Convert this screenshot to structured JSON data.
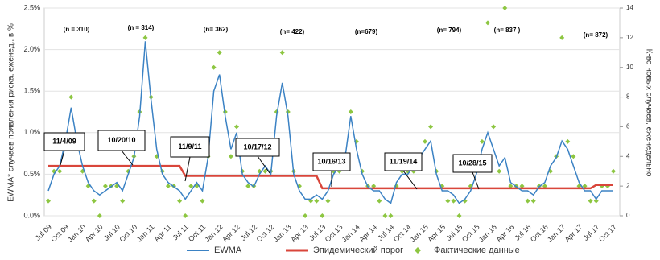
{
  "chart_data": {
    "type": "line",
    "y_label": "EWMA* случаев появления риска, еженед., в %",
    "y2_label": "К-во новых случаев, еженедельно",
    "categories": [
      "Jul 09",
      null,
      null,
      "Oct 09",
      null,
      null,
      "Jan 10",
      null,
      null,
      "Apr 10",
      null,
      null,
      "Jul 10",
      null,
      null,
      "Oct 10",
      null,
      null,
      "Jan 11",
      null,
      null,
      "Apr 11",
      null,
      null,
      "Jul 11",
      null,
      null,
      "Oct 11",
      null,
      null,
      "Jan 12",
      null,
      null,
      "Apr 12",
      null,
      null,
      "Jul 12",
      null,
      null,
      "Oct 12",
      null,
      null,
      "Jan 13",
      null,
      null,
      "Apr 13",
      null,
      null,
      "Jul 13",
      null,
      null,
      "Oct 13",
      null,
      null,
      "Jan 14",
      null,
      null,
      "Apr 14",
      null,
      null,
      "Jul 14",
      null,
      null,
      "Oct 14",
      null,
      null,
      "Jan 15",
      null,
      null,
      "Apr 15",
      null,
      null,
      "Jul 15",
      null,
      null,
      "Oct 15",
      null,
      null,
      "Jan 16",
      null,
      null,
      "Apr 16",
      null,
      null,
      "Jul 16",
      null,
      null,
      "Oct 16",
      null,
      null,
      "Jan 17",
      null,
      null,
      "Apr 17",
      null,
      null,
      "Jul 17",
      null,
      null,
      "Oct 17"
    ],
    "series": [
      {
        "name": "EWMA",
        "type": "line",
        "color": "#3b82c4",
        "values": [
          0.3,
          0.5,
          0.6,
          0.9,
          1.3,
          0.9,
          0.6,
          0.4,
          0.3,
          0.25,
          0.3,
          0.35,
          0.4,
          0.3,
          0.5,
          0.7,
          1.2,
          2.1,
          1.4,
          0.8,
          0.5,
          0.4,
          0.35,
          0.3,
          0.2,
          0.3,
          0.4,
          0.3,
          0.7,
          1.5,
          1.7,
          1.2,
          0.8,
          1.0,
          0.5,
          0.4,
          0.35,
          0.5,
          0.6,
          0.5,
          1.2,
          1.6,
          1.2,
          0.5,
          0.3,
          0.2,
          0.2,
          0.25,
          0.2,
          0.3,
          0.5,
          0.6,
          0.7,
          1.2,
          0.8,
          0.5,
          0.35,
          0.3,
          0.3,
          0.2,
          0.15,
          0.4,
          0.5,
          0.5,
          0.6,
          0.7,
          0.8,
          0.9,
          0.5,
          0.3,
          0.3,
          0.25,
          0.15,
          0.2,
          0.3,
          0.5,
          0.8,
          1.0,
          0.8,
          0.6,
          0.7,
          0.4,
          0.35,
          0.3,
          0.3,
          0.25,
          0.35,
          0.4,
          0.6,
          0.7,
          0.9,
          0.8,
          0.6,
          0.4,
          0.3,
          0.3,
          0.2,
          0.3,
          0.3,
          0.3
        ]
      },
      {
        "name": "Эпидемический порог",
        "type": "line",
        "color": "#d9463b",
        "values": [
          0.6,
          0.6,
          0.6,
          0.6,
          0.6,
          0.6,
          0.6,
          0.6,
          0.6,
          0.6,
          0.6,
          0.6,
          0.6,
          0.6,
          0.6,
          0.6,
          0.6,
          0.6,
          0.6,
          0.6,
          0.6,
          0.6,
          0.6,
          0.6,
          0.48,
          0.48,
          0.48,
          0.48,
          0.48,
          0.48,
          0.48,
          0.48,
          0.48,
          0.48,
          0.48,
          0.48,
          0.48,
          0.48,
          0.48,
          0.48,
          0.48,
          0.48,
          0.48,
          0.48,
          0.48,
          0.48,
          0.48,
          0.48,
          0.33,
          0.33,
          0.33,
          0.33,
          0.33,
          0.33,
          0.33,
          0.33,
          0.33,
          0.33,
          0.33,
          0.33,
          0.33,
          0.33,
          0.33,
          0.33,
          0.33,
          0.33,
          0.33,
          0.33,
          0.33,
          0.33,
          0.33,
          0.33,
          0.33,
          0.33,
          0.33,
          0.33,
          0.33,
          0.33,
          0.33,
          0.33,
          0.33,
          0.33,
          0.33,
          0.33,
          0.33,
          0.33,
          0.33,
          0.33,
          0.33,
          0.33,
          0.33,
          0.33,
          0.33,
          0.33,
          0.33,
          0.33,
          0.37,
          0.37,
          0.37,
          0.37
        ]
      },
      {
        "name": "Фактические данные",
        "type": "scatter",
        "axis": "y2",
        "color": "#8dc641",
        "values": [
          1,
          3,
          3,
          5,
          8,
          5,
          3,
          2,
          1,
          0,
          2,
          2,
          2,
          1,
          3,
          4,
          7,
          12,
          8,
          4,
          3,
          2,
          2,
          1,
          0,
          2,
          2,
          1,
          4,
          10,
          11,
          7,
          4,
          6,
          3,
          2,
          2,
          3,
          3,
          3,
          7,
          11,
          7,
          3,
          2,
          0,
          1,
          1,
          0,
          1,
          3,
          3,
          4,
          7,
          5,
          3,
          2,
          2,
          1,
          0,
          0,
          2,
          3,
          3,
          3,
          4,
          5,
          6,
          3,
          2,
          1,
          1,
          0,
          1,
          2,
          3,
          5,
          13,
          6,
          3,
          14,
          2,
          2,
          2,
          1,
          1,
          2,
          2,
          3,
          4,
          12,
          5,
          4,
          2,
          2,
          1,
          1,
          2,
          2,
          3
        ]
      }
    ],
    "ylim": [
      0,
      2.5
    ],
    "yticks": [
      {
        "value": 0,
        "label": "0.0%"
      },
      {
        "value": 0.5,
        "label": "0.5%"
      },
      {
        "value": 1,
        "label": "1.0%"
      },
      {
        "value": 1.5,
        "label": "1.5%"
      },
      {
        "value": 2,
        "label": "2.0%"
      },
      {
        "value": 2.5,
        "label": "2.5%"
      }
    ],
    "y2lim": [
      0,
      14
    ],
    "y2ticks": [
      0,
      2,
      4,
      6,
      8,
      10,
      12,
      14
    ],
    "sample_sizes": [
      "(n = 310)",
      "(n = 314)",
      "(n=  362)",
      "(n= 422)",
      "(n=679)",
      "(n= 794)",
      "(n= 837 )",
      "(n= 872)"
    ],
    "dates": [
      "11/4/09",
      "10/20/10",
      "11/9/11",
      "10/17/12",
      "10/16/13",
      "11/19/14",
      "10/28/15"
    ],
    "legend": "bottom"
  }
}
